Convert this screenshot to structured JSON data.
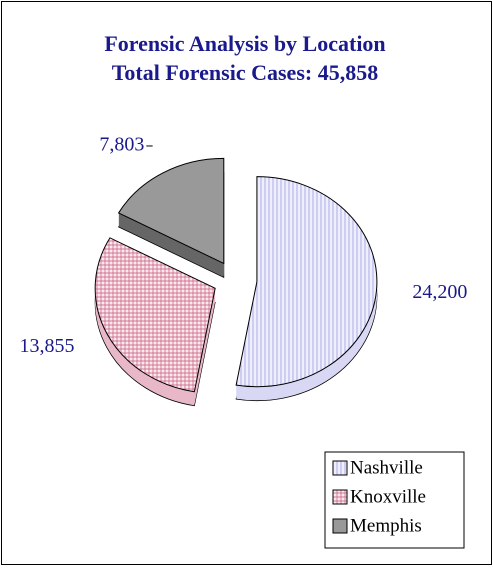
{
  "chart_data": {
    "type": "pie",
    "title": "Forensic Analysis by Location",
    "subtitle": "Total Forensic Cases:  45,858",
    "categories": [
      "Nashville",
      "Knoxville",
      "Memphis"
    ],
    "values": [
      24200,
      13855,
      7803
    ],
    "value_labels": [
      "24,200",
      "13,855",
      "7,803"
    ],
    "colors": [
      "#e6e6ff",
      "#f6d6e0",
      "#999999"
    ],
    "legend": "bottom-right"
  }
}
